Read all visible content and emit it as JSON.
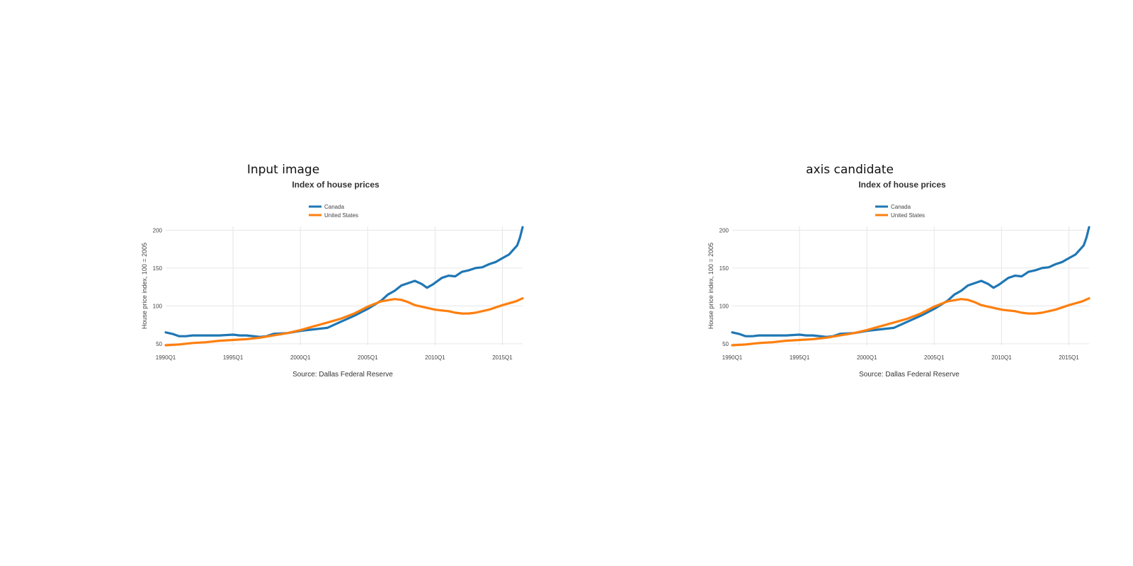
{
  "panels": [
    {
      "label": "Input image"
    },
    {
      "label": "axis candidate"
    }
  ],
  "chart_data": {
    "type": "line",
    "title": "Index of house prices",
    "ylabel": "House price index, 100 = 2005",
    "xlabel": "",
    "source": "Source: Dallas Federal Reserve",
    "ylim": [
      48,
      205
    ],
    "yticks": [
      50,
      100,
      150,
      200
    ],
    "xticks": [
      {
        "label": "1990Q1",
        "year": 1990
      },
      {
        "label": "1995Q1",
        "year": 1995
      },
      {
        "label": "2000Q1",
        "year": 2000
      },
      {
        "label": "2005Q1",
        "year": 2005
      },
      {
        "label": "2010Q1",
        "year": 2010
      },
      {
        "label": "2015Q1",
        "year": 2015
      }
    ],
    "xlim": [
      1990,
      2016.5
    ],
    "grid": true,
    "legend": "top-center",
    "series": [
      {
        "name": "Canada",
        "color": "#1f77b4",
        "points": [
          [
            1990,
            65
          ],
          [
            1990.5,
            63
          ],
          [
            1991,
            60
          ],
          [
            1991.5,
            60
          ],
          [
            1992,
            61
          ],
          [
            1993,
            61
          ],
          [
            1994,
            61
          ],
          [
            1995,
            62
          ],
          [
            1995.5,
            61
          ],
          [
            1996,
            61
          ],
          [
            1997,
            59
          ],
          [
            1997.5,
            60
          ],
          [
            1998,
            63
          ],
          [
            1999,
            64
          ],
          [
            2000,
            67
          ],
          [
            2001,
            69
          ],
          [
            2002,
            71
          ],
          [
            2003,
            79
          ],
          [
            2004,
            87
          ],
          [
            2005,
            96
          ],
          [
            2006,
            107
          ],
          [
            2006.5,
            115
          ],
          [
            2007,
            120
          ],
          [
            2007.5,
            127
          ],
          [
            2008.5,
            133
          ],
          [
            2009,
            129
          ],
          [
            2009.4,
            124
          ],
          [
            2009.8,
            128
          ],
          [
            2010.5,
            137
          ],
          [
            2011,
            140
          ],
          [
            2011.5,
            139
          ],
          [
            2012,
            145
          ],
          [
            2012.5,
            147
          ],
          [
            2013,
            150
          ],
          [
            2013.5,
            151
          ],
          [
            2014,
            155
          ],
          [
            2014.5,
            158
          ],
          [
            2015,
            163
          ],
          [
            2015.5,
            168
          ],
          [
            2015.8,
            174
          ],
          [
            2016.1,
            180
          ],
          [
            2016.3,
            190
          ],
          [
            2016.5,
            204
          ]
        ]
      },
      {
        "name": "United States",
        "color": "#ff7f0e",
        "points": [
          [
            1990,
            48
          ],
          [
            1991,
            49
          ],
          [
            1992,
            51
          ],
          [
            1993,
            52
          ],
          [
            1994,
            54
          ],
          [
            1995,
            55
          ],
          [
            1996,
            56
          ],
          [
            1997,
            58
          ],
          [
            1998,
            61
          ],
          [
            1999,
            64
          ],
          [
            2000,
            68
          ],
          [
            2001,
            73
          ],
          [
            2002,
            78
          ],
          [
            2003,
            83
          ],
          [
            2004,
            90
          ],
          [
            2005,
            99
          ],
          [
            2006,
            106
          ],
          [
            2007,
            109
          ],
          [
            2007.5,
            108
          ],
          [
            2008,
            105
          ],
          [
            2008.5,
            101
          ],
          [
            2009,
            99
          ],
          [
            2009.5,
            97
          ],
          [
            2010,
            95
          ],
          [
            2010.5,
            94
          ],
          [
            2011,
            93
          ],
          [
            2011.5,
            91
          ],
          [
            2012,
            90
          ],
          [
            2012.5,
            90
          ],
          [
            2013,
            91
          ],
          [
            2014,
            95
          ],
          [
            2015,
            101
          ],
          [
            2016,
            106
          ],
          [
            2016.5,
            110
          ]
        ]
      }
    ]
  }
}
